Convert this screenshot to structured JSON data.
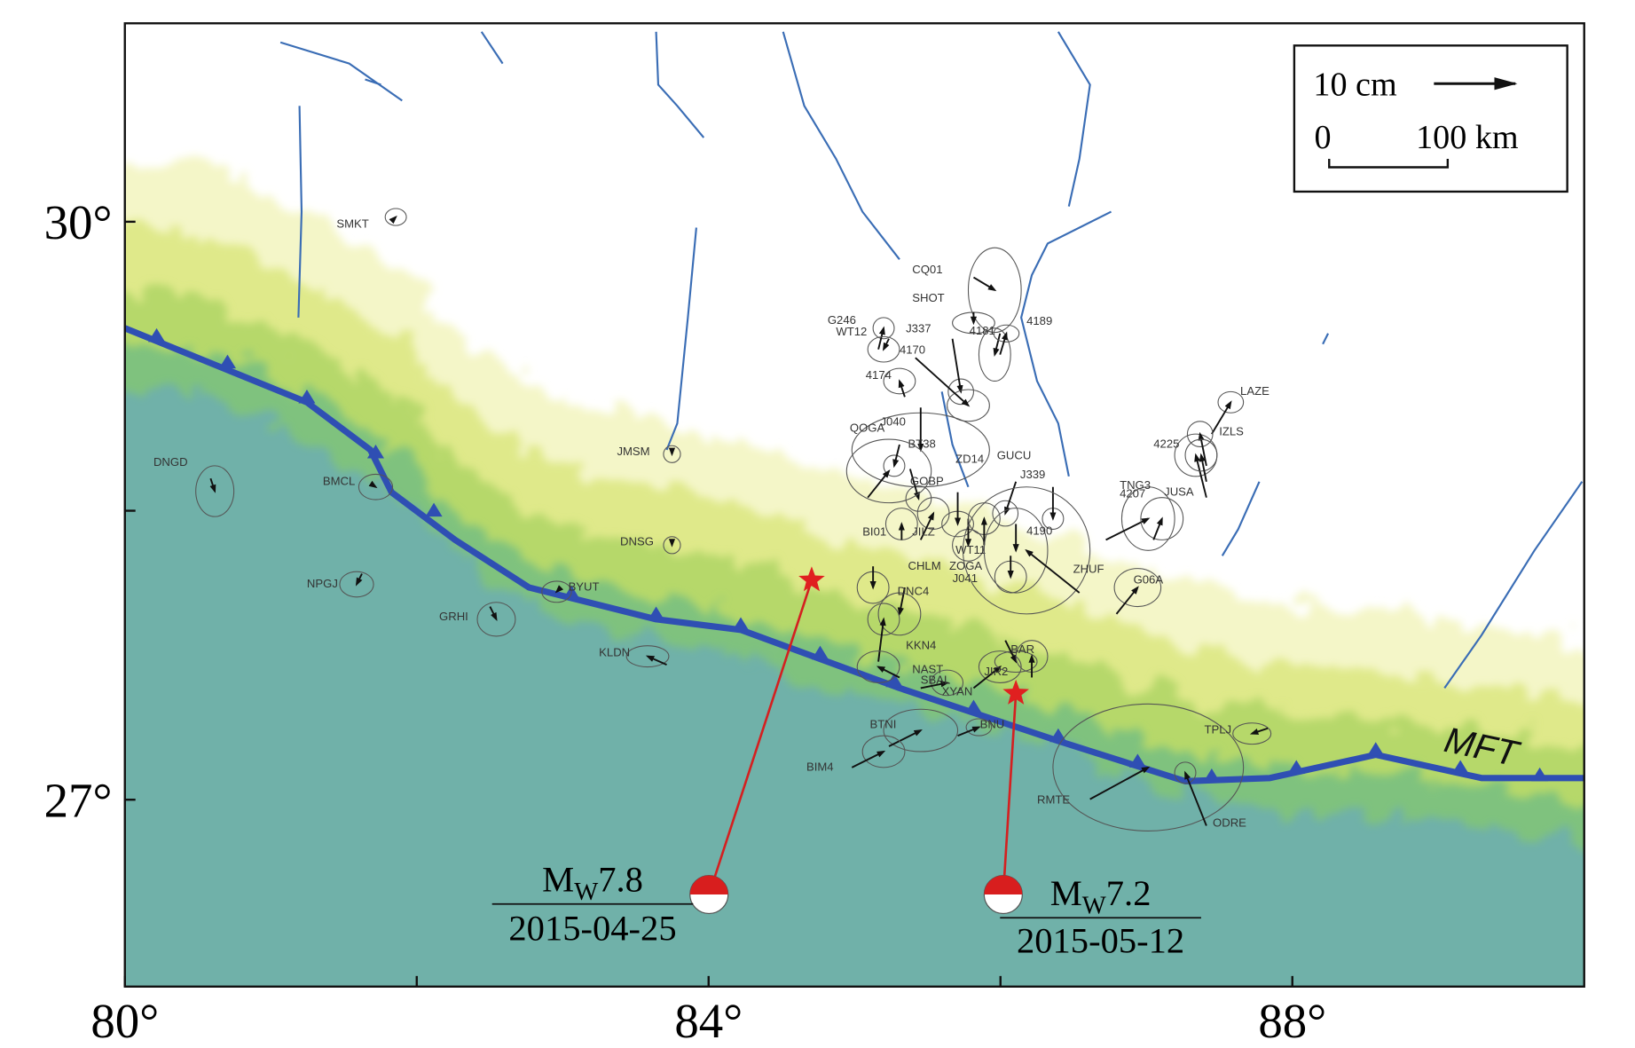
{
  "chart_data": {
    "type": "map",
    "xlim": [
      80,
      90
    ],
    "ylim": [
      26.03,
      31.03
    ],
    "xticks": [
      {
        "value": 80,
        "label": "80°"
      },
      {
        "value": 84,
        "label": "84°"
      },
      {
        "value": 88,
        "label": "88°"
      }
    ],
    "xticks_minor": [
      82,
      86
    ],
    "yticks": [
      {
        "value": 27,
        "label": "27°"
      },
      {
        "value": 30,
        "label": "30°"
      }
    ],
    "yticks_minor": [
      28.5
    ]
  },
  "fault_label": "MFT",
  "scale": {
    "vector_label": "10 cm",
    "distance_start": "0",
    "distance_end": "100 km"
  },
  "stations": [
    "SMKT",
    "DNGD",
    "BMCL",
    "NPGJ",
    "GRHI",
    "BYUT",
    "KLDN",
    "JMSM",
    "DNSG",
    "CQ01",
    "SHOT",
    "G246",
    "WT12",
    "J337",
    "4181",
    "4189",
    "4170",
    "4174",
    "QOGA",
    "J040",
    "BT38",
    "ZD14",
    "GUCU",
    "GOBP",
    "J339",
    "BI01",
    "JILZ",
    "WT11",
    "ZOGA",
    "J041",
    "CHLM",
    "DNC4",
    "4190",
    "ZHUF",
    "G06A",
    "TNG3",
    "4207",
    "JUSA",
    "LAZE",
    "IZLS",
    "4225",
    "KKN4",
    "NAST",
    "SBAL",
    "XYAN",
    "JIR2",
    "BAR",
    "BTNI",
    "BNU",
    "BIM4",
    "RMTE",
    "ODRE",
    "TPLJ"
  ],
  "events": [
    {
      "magnitude_symbol": "M",
      "magnitude_subscript": "W",
      "magnitude": 7.8,
      "date": "2015-04-25"
    },
    {
      "magnitude_symbol": "M",
      "magnitude_subscript": "W",
      "magnitude": 7.2,
      "date": "2015-05-12"
    }
  ]
}
